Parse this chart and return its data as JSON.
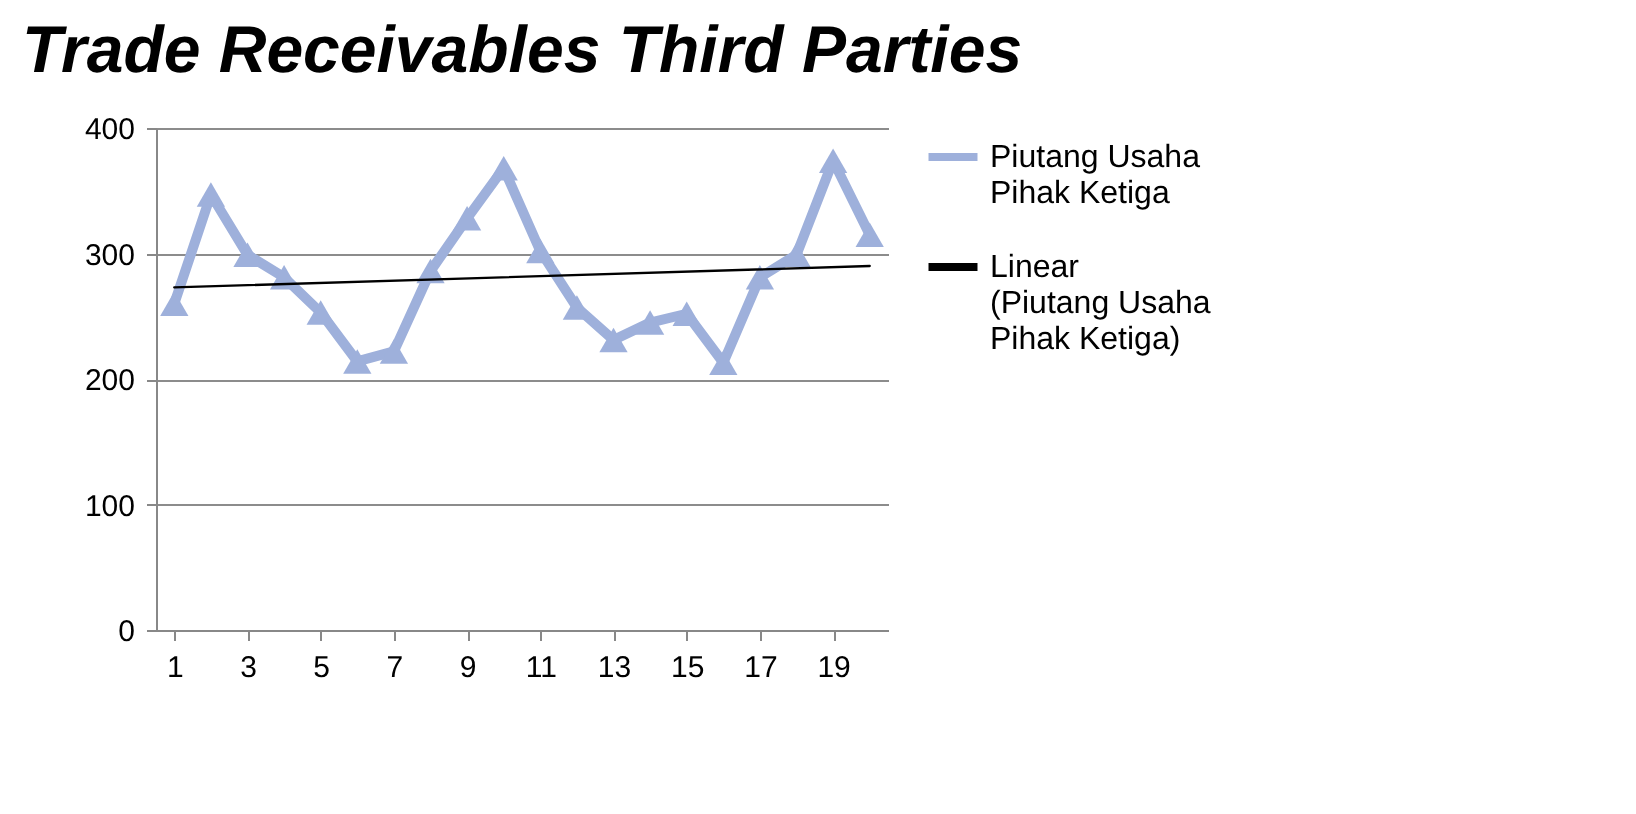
{
  "chart_data": {
    "type": "line",
    "title": "Trade Receivables Third Parties",
    "x": [
      1,
      2,
      3,
      4,
      5,
      6,
      7,
      8,
      9,
      10,
      11,
      12,
      13,
      14,
      15,
      16,
      17,
      18,
      19,
      20
    ],
    "series": [
      {
        "name": "Piutang Usaha Pihak Ketiga",
        "color": "#9eb0db",
        "marker": "triangle",
        "values": [
          260,
          347,
          299,
          281,
          253,
          214,
          222,
          286,
          328,
          368,
          302,
          257,
          231,
          245,
          252,
          213,
          281,
          299,
          374,
          315
        ]
      },
      {
        "name": "Linear (Piutang Usaha Pihak Ketiga)",
        "color": "#000000",
        "marker": "none",
        "x": [
          1,
          20
        ],
        "values": [
          273,
          290
        ]
      }
    ],
    "xlim": [
      0.5,
      20.5
    ],
    "xticks": [
      1,
      3,
      5,
      7,
      9,
      11,
      13,
      15,
      17,
      19
    ],
    "ylim": [
      0,
      400
    ],
    "yticks": [
      0,
      100,
      200,
      300,
      400
    ],
    "grid": "y",
    "legend": "right"
  }
}
